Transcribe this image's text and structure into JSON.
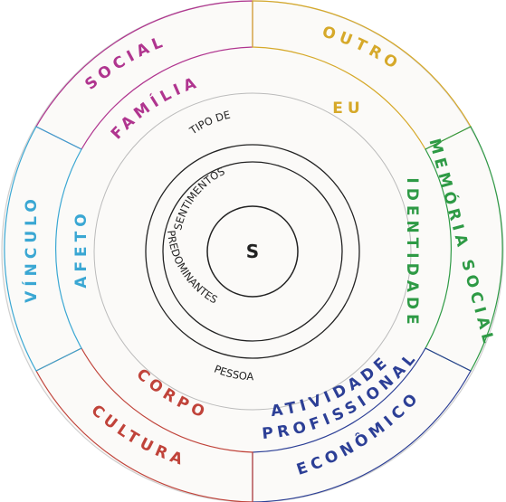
{
  "colors": {
    "social": "#b0358f",
    "outro": "#d6a92a",
    "memoria": "#2e9a45",
    "economico": "#2c3f96",
    "cultura": "#c0433a",
    "vinculo": "#3aa7d3",
    "neutral": "#333333"
  },
  "outer_ring": {
    "social": "SOCIAL",
    "outro": "OUTRO",
    "memoria_social": "MEMÓRIA SOCIAL",
    "economico": "ECONÔMICO",
    "cultura": "CULTURA",
    "vinculo": "VÍNCULO"
  },
  "middle_ring": {
    "familia": "FAMÍLIA",
    "eu": "EU",
    "identidade": "IDENTIDADE",
    "atividade": "ATIVIDADE",
    "profissional": "PROFISSIONAL",
    "corpo": "CORPO",
    "afeto": "AFETO"
  },
  "center": {
    "tipo_de": "TIPO DE",
    "sentimentos": "SENTIMENTOS",
    "predominantes": "PREDOMINANTES",
    "pessoa": "PESSOA",
    "core": "S"
  }
}
